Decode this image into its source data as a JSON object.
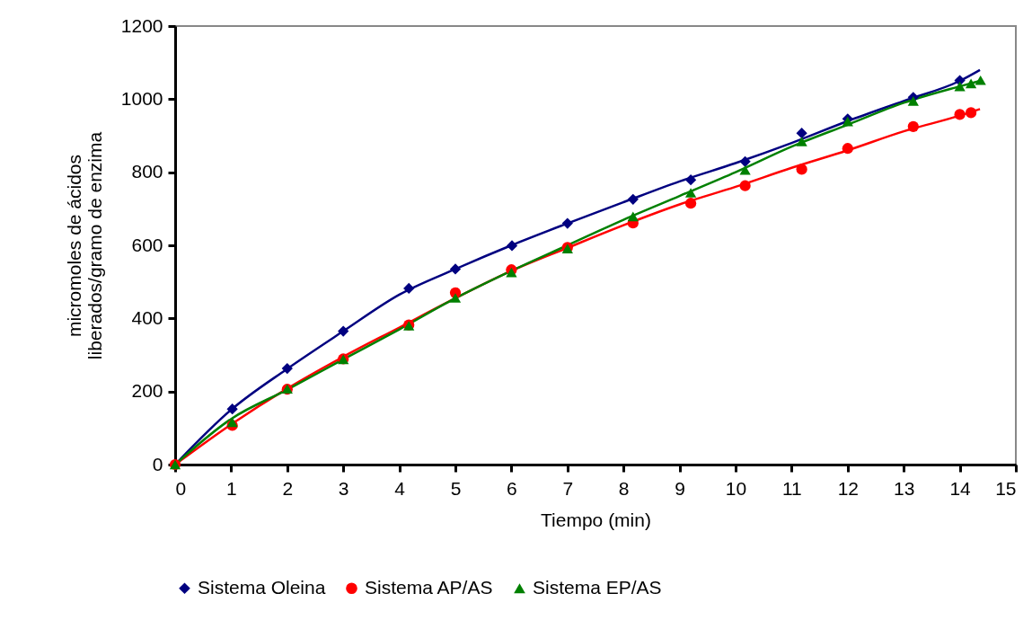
{
  "chart_data": {
    "type": "scatter",
    "xlabel": "Tiempo (min)",
    "ylabel": "micromoles de ácidos\nliberados/gramo de enzima",
    "xlim": [
      0,
      15
    ],
    "ylim": [
      0,
      1200
    ],
    "xticks": [
      0,
      1,
      2,
      3,
      4,
      5,
      6,
      7,
      8,
      9,
      10,
      11,
      12,
      13,
      14,
      15
    ],
    "yticks": [
      0,
      200,
      400,
      600,
      800,
      1000,
      1200
    ],
    "grid": false,
    "legend": "bottom",
    "series": [
      {
        "name": "Sistema Oleina",
        "marker": "diamond",
        "color": "#000080",
        "x": [
          1.02,
          2,
          3,
          4.17,
          5,
          6.01,
          7,
          8.17,
          9.2,
          10.17,
          11.18,
          12,
          13.17,
          14
        ],
        "values": [
          152,
          263,
          365,
          482,
          535,
          599,
          660,
          726,
          779,
          829,
          907,
          946,
          1005,
          1051
        ]
      },
      {
        "name": "Sistema AP/AS",
        "marker": "circle",
        "color": "#ff0000",
        "x": [
          0,
          1.02,
          2,
          3,
          4.17,
          5,
          6,
          7,
          8.17,
          9.2,
          10.17,
          11.18,
          12,
          13.17,
          14,
          14.2
        ],
        "values": [
          0,
          107,
          206,
          289,
          382,
          470,
          533,
          594,
          661,
          715,
          763,
          808,
          865,
          925,
          958,
          963
        ]
      },
      {
        "name": "Sistema EP/AS",
        "marker": "triangle",
        "color": "#008000",
        "x": [
          0,
          1.02,
          2,
          3,
          4.17,
          5,
          6,
          7,
          8.17,
          9.2,
          10.17,
          11.18,
          12,
          13.17,
          14,
          14.2,
          14.37
        ],
        "values": [
          0,
          116,
          207,
          288,
          380,
          456,
          526,
          591,
          679,
          744,
          806,
          884,
          939,
          995,
          1035,
          1043,
          1052
        ]
      },
      {
        "type": "line",
        "color": "#000080",
        "x": [
          0,
          1,
          2,
          3,
          4,
          5,
          6,
          7,
          8,
          9,
          10,
          11,
          12,
          13,
          14,
          14.36
        ],
        "values": [
          0,
          150,
          262,
          365,
          465,
          535,
          600,
          660,
          718,
          775,
          825,
          880,
          940,
          995,
          1050,
          1080
        ]
      },
      {
        "type": "line",
        "color": "#ff0000",
        "x": [
          0,
          1,
          2,
          3,
          4,
          5,
          6,
          7,
          8,
          9,
          10,
          11,
          12,
          13,
          14,
          14.36
        ],
        "values": [
          0,
          110,
          208,
          295,
          375,
          455,
          530,
          593,
          655,
          712,
          760,
          812,
          860,
          912,
          955,
          973
        ]
      },
      {
        "type": "line",
        "color": "#008000",
        "x": [
          0,
          1,
          2,
          3,
          4,
          5,
          6,
          7,
          8,
          9,
          10,
          11,
          12,
          13,
          14,
          14.36
        ],
        "values": [
          0,
          125,
          205,
          288,
          370,
          455,
          530,
          600,
          670,
          735,
          800,
          870,
          930,
          990,
          1035,
          1050
        ]
      }
    ]
  }
}
